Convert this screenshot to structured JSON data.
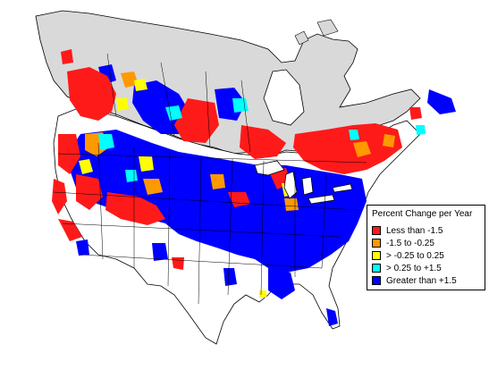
{
  "legend": {
    "title": "Percent Change per Year",
    "items": [
      {
        "label": "Less than -1.5",
        "color": "#ff1a1a"
      },
      {
        "label": "-1.5 to -0.25",
        "color": "#ff9900"
      },
      {
        "label": "> -0.25 to 0.25",
        "color": "#ffff00"
      },
      {
        "label": "> 0.25 to +1.5",
        "color": "#00ffff"
      },
      {
        "label": "Greater than +1.5",
        "color": "#0000ff"
      }
    ]
  },
  "colors": {
    "land_unsurveyed": "#d9d9d9",
    "land_no_data": "#ffffff",
    "boundary": "#000000"
  }
}
